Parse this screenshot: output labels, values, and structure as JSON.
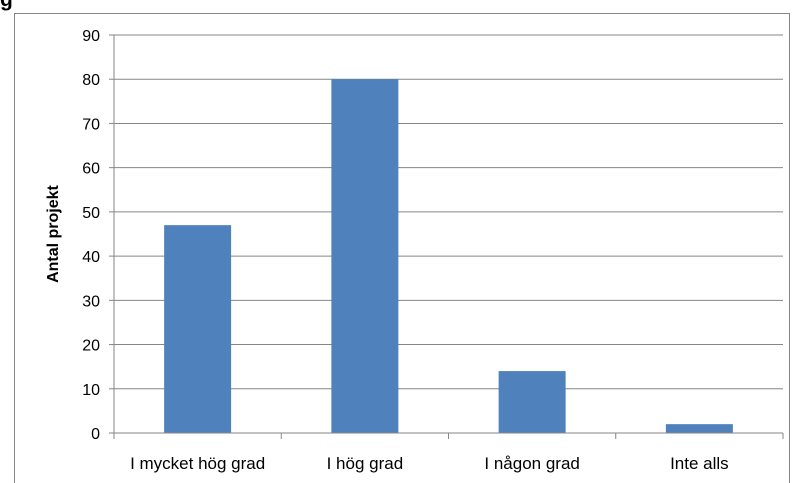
{
  "title_fragment": "g",
  "chart_data": {
    "type": "bar",
    "categories": [
      "I mycket hög grad",
      "I hög grad",
      "I någon grad",
      "Inte alls"
    ],
    "values": [
      47,
      80,
      14,
      2
    ],
    "title": "",
    "xlabel": "",
    "ylabel": "Antal projekt",
    "ylim": [
      0,
      90
    ],
    "yticks": [
      0,
      10,
      20,
      30,
      40,
      50,
      60,
      70,
      80,
      90
    ],
    "grid": true,
    "legend": "none",
    "colors": {
      "bar": "#4F81BD",
      "grid": "#868686",
      "axis": "#868686",
      "text": "#000000"
    }
  }
}
